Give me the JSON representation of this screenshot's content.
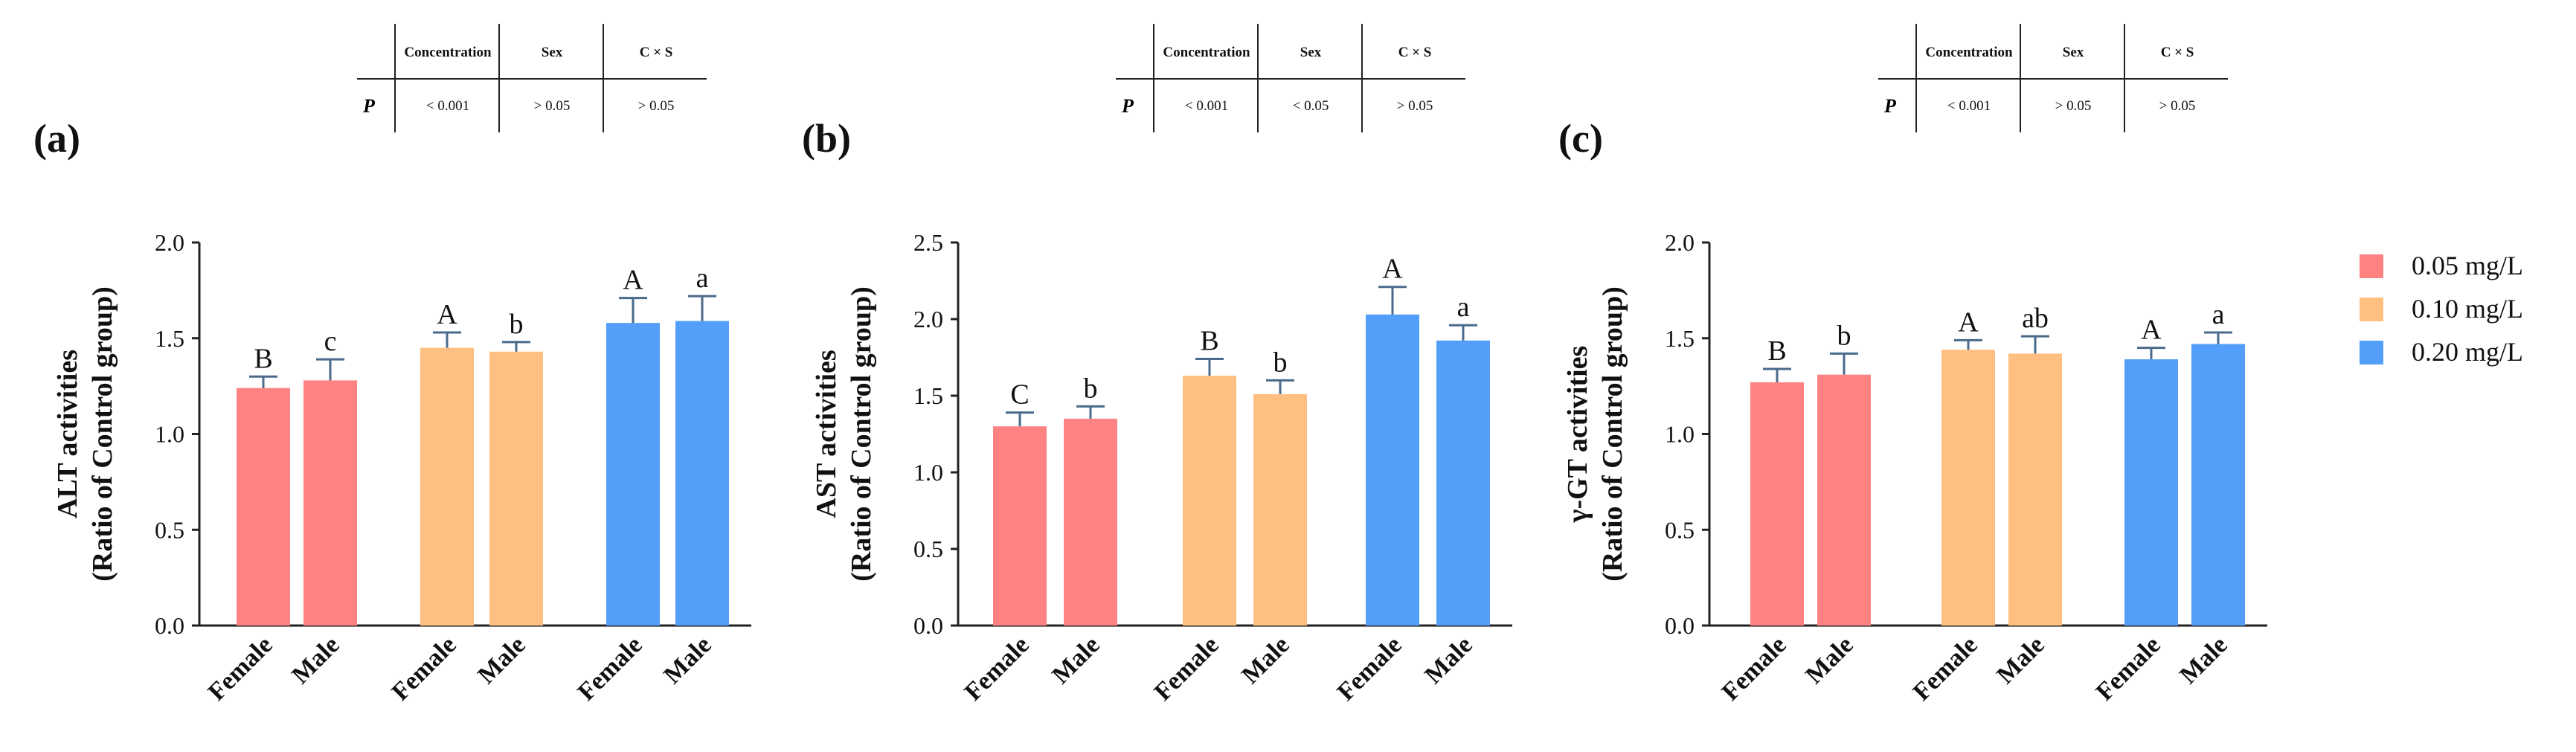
{
  "colors": {
    "conc_005": "#FF8283",
    "conc_010": "#FFBF80",
    "conc_020": "#529EF8",
    "error_bar": "#4A6A8C"
  },
  "legend": [
    {
      "label": "0.05 mg/L",
      "color": "#FF8283"
    },
    {
      "label": "0.10 mg/L",
      "color": "#FFBF80"
    },
    {
      "label": "0.20 mg/L",
      "color": "#529EF8"
    }
  ],
  "panels": [
    {
      "label": "(a)",
      "stats_table": {
        "row_label": "P",
        "headers": [
          "Concentration",
          "Sex",
          "C × S"
        ],
        "values": [
          "< 0.001",
          "> 0.05",
          "> 0.05"
        ]
      }
    },
    {
      "label": "(b)",
      "stats_table": {
        "row_label": "P",
        "headers": [
          "Concentration",
          "Sex",
          "C × S"
        ],
        "values": [
          "< 0.001",
          "< 0.05",
          "> 0.05"
        ]
      }
    },
    {
      "label": "(c)",
      "stats_table": {
        "row_label": "P",
        "headers": [
          "Concentration",
          "Sex",
          "C × S"
        ],
        "values": [
          "< 0.001",
          "> 0.05",
          "> 0.05"
        ]
      }
    }
  ],
  "chart_data": [
    {
      "type": "bar",
      "ylabel": [
        "ALT activities",
        "(Ratio of Control group)"
      ],
      "ylim": [
        0,
        2.0
      ],
      "yticks": [
        "0.0",
        "0.5",
        "1.0",
        "1.5",
        "2.0"
      ],
      "categories": [
        "Female",
        "Male",
        "Female",
        "Male",
        "Female",
        "Male"
      ],
      "values": [
        1.24,
        1.28,
        1.45,
        1.43,
        1.58,
        1.59
      ],
      "errors": [
        0.06,
        0.11,
        0.08,
        0.05,
        0.13,
        0.13
      ],
      "group_colors": [
        "#FF8283",
        "#FF8283",
        "#FFBF80",
        "#FFBF80",
        "#529EF8",
        "#529EF8"
      ],
      "annotations": [
        "B",
        "c",
        "A",
        "b",
        "A",
        "a"
      ]
    },
    {
      "type": "bar",
      "ylabel": [
        "AST activities",
        "(Ratio of Control group)"
      ],
      "ylim": [
        0,
        2.5
      ],
      "yticks": [
        "0.0",
        "0.5",
        "1.0",
        "1.5",
        "2.0",
        "2.5"
      ],
      "categories": [
        "Female",
        "Male",
        "Female",
        "Male",
        "Female",
        "Male"
      ],
      "values": [
        1.3,
        1.35,
        1.63,
        1.51,
        2.03,
        1.86
      ],
      "errors": [
        0.09,
        0.08,
        0.11,
        0.09,
        0.18,
        0.1
      ],
      "group_colors": [
        "#FF8283",
        "#FF8283",
        "#FFBF80",
        "#FFBF80",
        "#529EF8",
        "#529EF8"
      ],
      "annotations": [
        "C",
        "b",
        "B",
        "b",
        "A",
        "a"
      ]
    },
    {
      "type": "bar",
      "ylabel": [
        "γ-GT activities",
        "(Ratio of Control group)"
      ],
      "ylim": [
        0,
        2.0
      ],
      "yticks": [
        "0.0",
        "0.5",
        "1.0",
        "1.5",
        "2.0"
      ],
      "categories": [
        "Female",
        "Male",
        "Female",
        "Male",
        "Female",
        "Male"
      ],
      "values": [
        1.27,
        1.31,
        1.44,
        1.42,
        1.39,
        1.47
      ],
      "errors": [
        0.07,
        0.11,
        0.05,
        0.09,
        0.06,
        0.06
      ],
      "group_colors": [
        "#FF8283",
        "#FF8283",
        "#FFBF80",
        "#FFBF80",
        "#529EF8",
        "#529EF8"
      ],
      "annotations": [
        "B",
        "b",
        "A",
        "ab",
        "A",
        "a"
      ]
    }
  ]
}
